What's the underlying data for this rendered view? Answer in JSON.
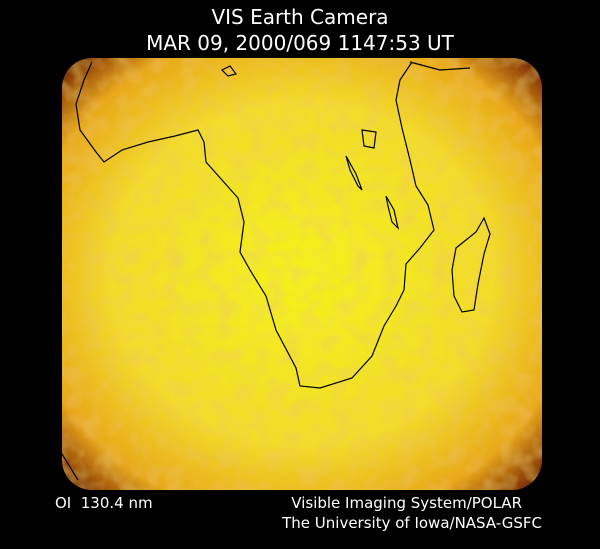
{
  "header": {
    "title": "VIS Earth Camera",
    "subtitle": "MAR 09, 2000/069 1147:53 UT"
  },
  "footer": {
    "left": "OI  130.4 nm",
    "right_line1": "Visible Imaging System/POLAR",
    "right_line2": "The University of Iowa/NASA-GSFC"
  }
}
